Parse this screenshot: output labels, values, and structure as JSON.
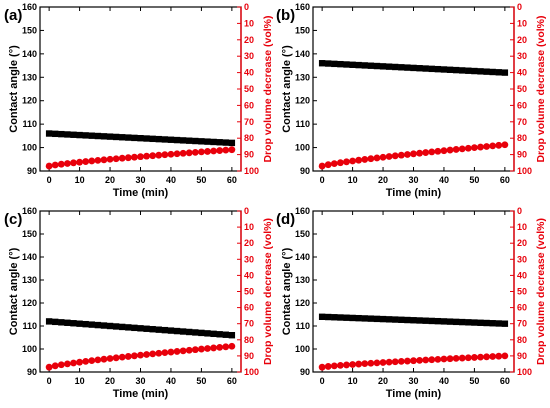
{
  "chart_data": [
    {
      "panel": "(a)",
      "type": "scatter",
      "xlabel": "Time (min)",
      "ylabel": "Contact angle (°)",
      "y2label": "Drop volume decrease (vol%)",
      "xlim": [
        -3,
        63
      ],
      "ylim": [
        90,
        160
      ],
      "y2lim": [
        0,
        100
      ],
      "y2_reversed": true,
      "xticks": [
        0,
        10,
        20,
        30,
        40,
        50,
        60
      ],
      "yticks": [
        90,
        100,
        110,
        120,
        130,
        140,
        150,
        160
      ],
      "y2ticks": [
        0,
        10,
        20,
        30,
        40,
        50,
        60,
        70,
        80,
        90,
        100
      ],
      "colors": {
        "contact_angle": "#000000",
        "volume": "#e8000b",
        "axis_left": "#000000",
        "axis_right": "#e8000b"
      },
      "series": [
        {
          "name": "Contact angle",
          "axis": "left",
          "marker": "square",
          "start": 106.0,
          "end": 102.0
        },
        {
          "name": "Drop volume decrease",
          "axis": "right",
          "marker": "circle",
          "start": 97.0,
          "end": 87.0
        }
      ],
      "x": [
        0,
        2,
        4,
        6,
        8,
        10,
        12,
        14,
        16,
        18,
        20,
        22,
        24,
        26,
        28,
        30,
        32,
        34,
        36,
        38,
        40,
        42,
        44,
        46,
        48,
        50,
        52,
        54,
        56,
        58,
        60
      ]
    },
    {
      "panel": "(b)",
      "type": "scatter",
      "xlabel": "Time (min)",
      "ylabel": "Contact angle (°)",
      "y2label": "Drop volume decrease (vol%)",
      "xlim": [
        -3,
        63
      ],
      "ylim": [
        90,
        160
      ],
      "y2lim": [
        0,
        100
      ],
      "y2_reversed": true,
      "xticks": [
        0,
        10,
        20,
        30,
        40,
        50,
        60
      ],
      "yticks": [
        90,
        100,
        110,
        120,
        130,
        140,
        150,
        160
      ],
      "y2ticks": [
        0,
        10,
        20,
        30,
        40,
        50,
        60,
        70,
        80,
        90,
        100
      ],
      "colors": {
        "contact_angle": "#000000",
        "volume": "#e8000b",
        "axis_left": "#000000",
        "axis_right": "#e8000b"
      },
      "series": [
        {
          "name": "Contact angle",
          "axis": "left",
          "marker": "square",
          "start": 136.0,
          "end": 132.0
        },
        {
          "name": "Drop volume decrease",
          "axis": "right",
          "marker": "circle",
          "start": 97.0,
          "end": 84.0
        }
      ],
      "x": [
        0,
        2,
        4,
        6,
        8,
        10,
        12,
        14,
        16,
        18,
        20,
        22,
        24,
        26,
        28,
        30,
        32,
        34,
        36,
        38,
        40,
        42,
        44,
        46,
        48,
        50,
        52,
        54,
        56,
        58,
        60
      ]
    },
    {
      "panel": "(c)",
      "type": "scatter",
      "xlabel": "Time (min)",
      "ylabel": "Contact angle (°)",
      "y2label": "Drop volume decrease (vol%)",
      "xlim": [
        -3,
        63
      ],
      "ylim": [
        90,
        160
      ],
      "y2lim": [
        0,
        100
      ],
      "y2_reversed": true,
      "xticks": [
        0,
        10,
        20,
        30,
        40,
        50,
        60
      ],
      "yticks": [
        90,
        100,
        110,
        120,
        130,
        140,
        150,
        160
      ],
      "y2ticks": [
        0,
        10,
        20,
        30,
        40,
        50,
        60,
        70,
        80,
        90,
        100
      ],
      "colors": {
        "contact_angle": "#000000",
        "volume": "#e8000b",
        "axis_left": "#000000",
        "axis_right": "#e8000b"
      },
      "series": [
        {
          "name": "Contact angle",
          "axis": "left",
          "marker": "square",
          "start": 112.0,
          "end": 106.0
        },
        {
          "name": "Drop volume decrease",
          "axis": "right",
          "marker": "circle",
          "start": 97.0,
          "end": 84.0
        }
      ],
      "x": [
        0,
        2,
        4,
        6,
        8,
        10,
        12,
        14,
        16,
        18,
        20,
        22,
        24,
        26,
        28,
        30,
        32,
        34,
        36,
        38,
        40,
        42,
        44,
        46,
        48,
        50,
        52,
        54,
        56,
        58,
        60
      ]
    },
    {
      "panel": "(d)",
      "type": "scatter",
      "xlabel": "Time (min)",
      "ylabel": "Contact angle (°)",
      "y2label": "Drop volume decrease (vol%)",
      "xlim": [
        -3,
        63
      ],
      "ylim": [
        90,
        160
      ],
      "y2lim": [
        0,
        100
      ],
      "y2_reversed": true,
      "xticks": [
        0,
        10,
        20,
        30,
        40,
        50,
        60
      ],
      "yticks": [
        90,
        100,
        110,
        120,
        130,
        140,
        150,
        160
      ],
      "y2ticks": [
        0,
        10,
        20,
        30,
        40,
        50,
        60,
        70,
        80,
        90,
        100
      ],
      "colors": {
        "contact_angle": "#000000",
        "volume": "#e8000b",
        "axis_left": "#000000",
        "axis_right": "#e8000b"
      },
      "series": [
        {
          "name": "Contact angle",
          "axis": "left",
          "marker": "square",
          "start": 114.0,
          "end": 111.0
        },
        {
          "name": "Drop volume decrease",
          "axis": "right",
          "marker": "circle",
          "start": 97.0,
          "end": 90.0
        }
      ],
      "x": [
        0,
        2,
        4,
        6,
        8,
        10,
        12,
        14,
        16,
        18,
        20,
        22,
        24,
        26,
        28,
        30,
        32,
        34,
        36,
        38,
        40,
        42,
        44,
        46,
        48,
        50,
        52,
        54,
        56,
        58,
        60
      ]
    }
  ]
}
